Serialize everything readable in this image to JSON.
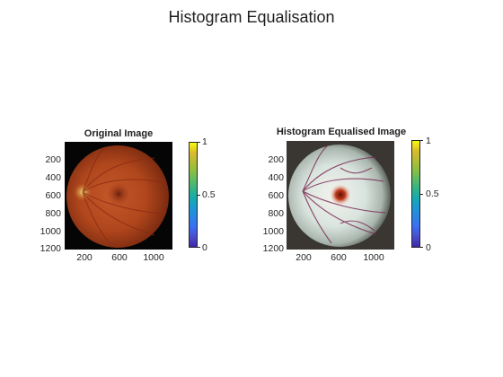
{
  "figure": {
    "title": "Histogram Equalisation"
  },
  "panels": [
    {
      "title": "Original Image",
      "y_ticks": [
        "200",
        "400",
        "600",
        "800",
        "1000",
        "1200"
      ],
      "x_ticks": [
        "200",
        "600",
        "1000"
      ],
      "colorbar_ticks": [
        "1",
        "0.5",
        "0"
      ]
    },
    {
      "title": "Histogram Equalised Image",
      "y_ticks": [
        "200",
        "400",
        "600",
        "800",
        "1000",
        "1200"
      ],
      "x_ticks": [
        "200",
        "600",
        "1000"
      ],
      "colorbar_ticks": [
        "1",
        "0.5",
        "0"
      ]
    }
  ],
  "colors": {
    "fundus_original": "#b34a1e",
    "fundus_equalised": "#e8ece8",
    "colormap_top": "#f9fb0e",
    "colormap_bottom": "#3e26a8"
  }
}
